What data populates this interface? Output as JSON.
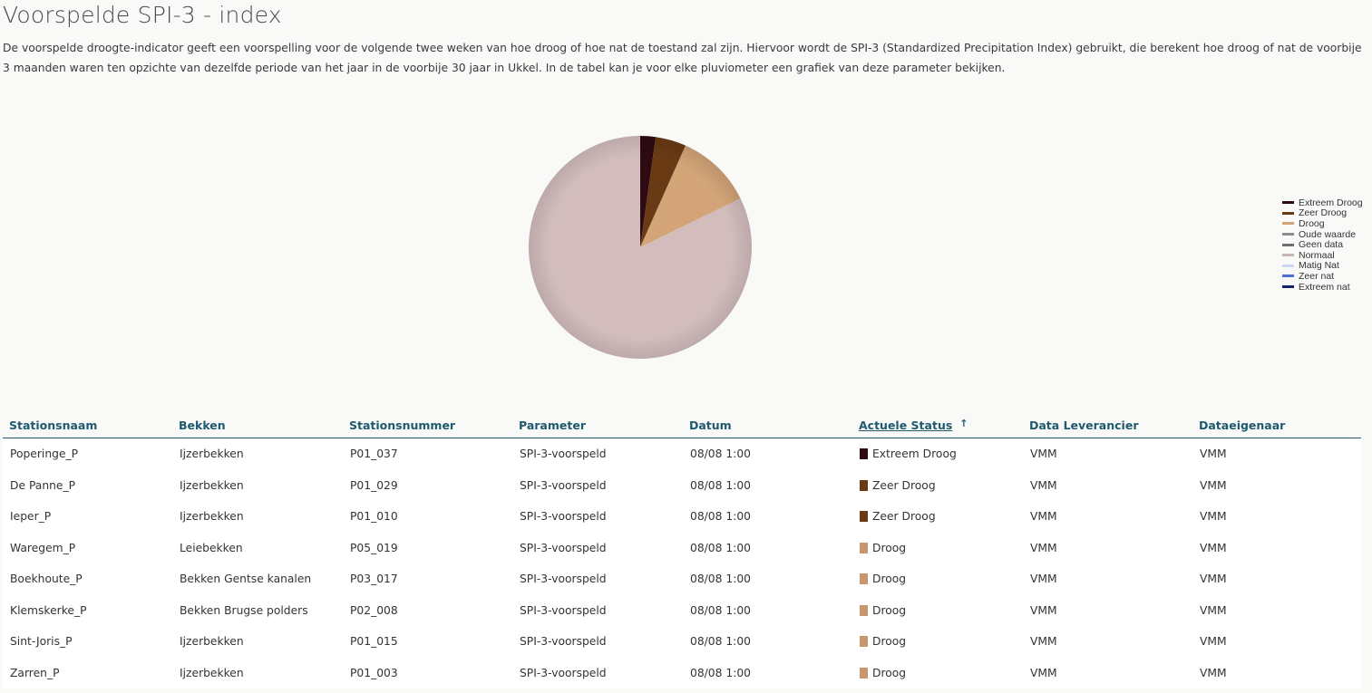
{
  "page": {
    "title": "Voorspelde SPI-3 - index",
    "description": "De voorspelde droogte-indicator geeft een voorspelling voor de volgende twee weken van hoe droog of hoe nat de toestand zal zijn. Hiervoor wordt de SPI-3 (Standardized Precipitation Index) gebruikt, die berekent hoe droog of nat de voorbije 3 maanden waren ten opzichte van dezelfde periode van het jaar in de voorbije 30 jaar in Ukkel. In de tabel kan je voor elke pluviometer een grafiek van deze parameter bekijken."
  },
  "chart_data": {
    "type": "pie",
    "legend_position": "right",
    "slices": [
      {
        "name": "Extreem Droog",
        "value": 1,
        "color": "#2e0a12"
      },
      {
        "name": "Zeer Droog",
        "value": 2,
        "color": "#6a3a14"
      },
      {
        "name": "Droog",
        "value": 5,
        "color": "#d3a478"
      },
      {
        "name": "Normaal",
        "value": 37,
        "color": "#d2bcbc"
      }
    ],
    "legend": [
      {
        "name": "Extreem Droog",
        "color": "#2e0a12"
      },
      {
        "name": "Zeer Droog",
        "color": "#6a3a14"
      },
      {
        "name": "Droog",
        "color": "#d3a478"
      },
      {
        "name": "Oude waarde",
        "color": "#8c8c8c"
      },
      {
        "name": "Geen data",
        "color": "#6f6f6f"
      },
      {
        "name": "Normaal",
        "color": "#c8b4b4"
      },
      {
        "name": "Matig Nat",
        "color": "#cad6f4"
      },
      {
        "name": "Zeer nat",
        "color": "#4a6fdc"
      },
      {
        "name": "Extreem nat",
        "color": "#12206e"
      }
    ]
  },
  "table": {
    "columns": [
      "Stationsnaam",
      "Bekken",
      "Stationsnummer",
      "Parameter",
      "Datum",
      "Actuele Status",
      "Data Leverancier",
      "Dataeigenaar"
    ],
    "sort_icon": "↑",
    "rows": [
      {
        "station": "Poperinge_P",
        "bekken": "Ijzerbekken",
        "nummer": "P01_037",
        "parameter": "SPI-3-voorspeld",
        "datum": "08/08 1:00",
        "status": "Extreem Droog",
        "status_color": "#2e0a12",
        "leverancier": "VMM",
        "eigenaar": "VMM"
      },
      {
        "station": "De Panne_P",
        "bekken": "Ijzerbekken",
        "nummer": "P01_029",
        "parameter": "SPI-3-voorspeld",
        "datum": "08/08 1:00",
        "status": "Zeer Droog",
        "status_color": "#6a3a14",
        "leverancier": "VMM",
        "eigenaar": "VMM"
      },
      {
        "station": "Ieper_P",
        "bekken": "Ijzerbekken",
        "nummer": "P01_010",
        "parameter": "SPI-3-voorspeld",
        "datum": "08/08 1:00",
        "status": "Zeer Droog",
        "status_color": "#6a3a14",
        "leverancier": "VMM",
        "eigenaar": "VMM"
      },
      {
        "station": "Waregem_P",
        "bekken": "Leiebekken",
        "nummer": "P05_019",
        "parameter": "SPI-3-voorspeld",
        "datum": "08/08 1:00",
        "status": "Droog",
        "status_color": "#c9976b",
        "leverancier": "VMM",
        "eigenaar": "VMM"
      },
      {
        "station": "Boekhoute_P",
        "bekken": "Bekken Gentse kanalen",
        "nummer": "P03_017",
        "parameter": "SPI-3-voorspeld",
        "datum": "08/08 1:00",
        "status": "Droog",
        "status_color": "#c9976b",
        "leverancier": "VMM",
        "eigenaar": "VMM"
      },
      {
        "station": "Klemskerke_P",
        "bekken": "Bekken Brugse polders",
        "nummer": "P02_008",
        "parameter": "SPI-3-voorspeld",
        "datum": "08/08 1:00",
        "status": "Droog",
        "status_color": "#c9976b",
        "leverancier": "VMM",
        "eigenaar": "VMM"
      },
      {
        "station": "Sint-Joris_P",
        "bekken": "Ijzerbekken",
        "nummer": "P01_015",
        "parameter": "SPI-3-voorspeld",
        "datum": "08/08 1:00",
        "status": "Droog",
        "status_color": "#c9976b",
        "leverancier": "VMM",
        "eigenaar": "VMM"
      },
      {
        "station": "Zarren_P",
        "bekken": "Ijzerbekken",
        "nummer": "P01_003",
        "parameter": "SPI-3-voorspeld",
        "datum": "08/08 1:00",
        "status": "Droog",
        "status_color": "#c9976b",
        "leverancier": "VMM",
        "eigenaar": "VMM"
      }
    ]
  }
}
